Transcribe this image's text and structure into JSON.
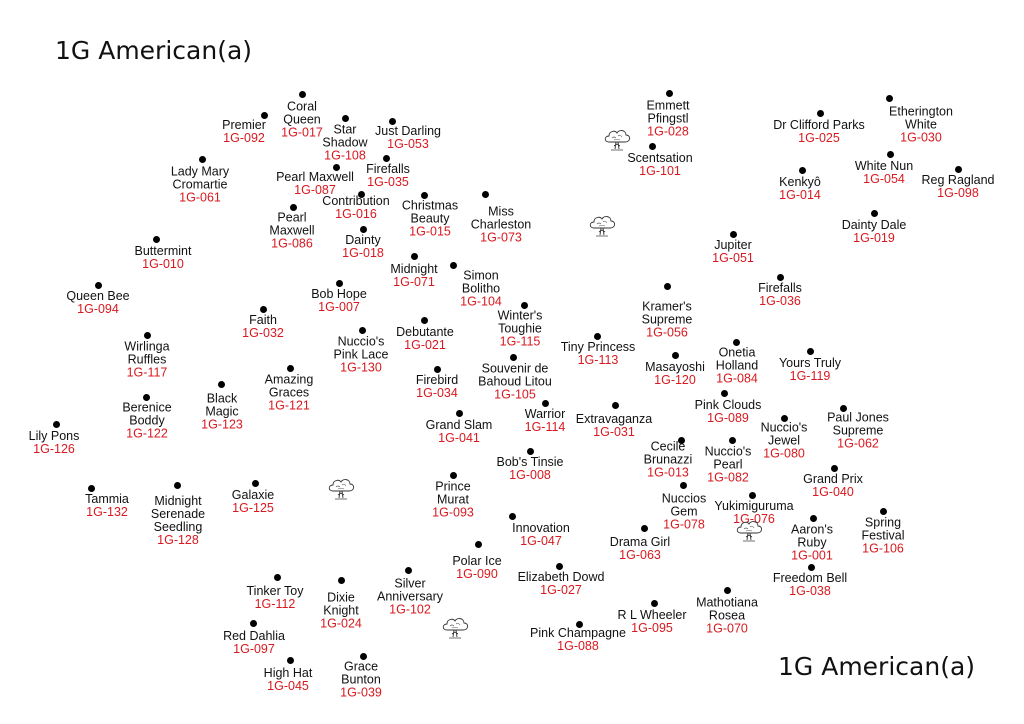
{
  "titles": {
    "top_left": "1G American(a)",
    "bottom_right": "1G American(a)"
  },
  "colors": {
    "name": "#111111",
    "code": "#d8191f",
    "dot": "#000000"
  },
  "plants": [
    {
      "name": "Coral\nQueen",
      "code": "1G-017"
    },
    {
      "name": "Premier",
      "code": "1G-092"
    },
    {
      "name": "Star\nShadow",
      "code": "1G-108"
    },
    {
      "name": "Just Darling",
      "code": "1G-053"
    },
    {
      "name": "Lady Mary\nCromartie",
      "code": "1G-061"
    },
    {
      "name": "Pearl Maxwell",
      "code": "1G-087"
    },
    {
      "name": "Firefalls",
      "code": "1G-035"
    },
    {
      "name": "Contribution",
      "code": "1G-016"
    },
    {
      "name": "Pearl\nMaxwell",
      "code": "1G-086"
    },
    {
      "name": "Christmas\nBeauty",
      "code": "1G-015"
    },
    {
      "name": "Miss\nCharleston",
      "code": "1G-073"
    },
    {
      "name": "Dainty",
      "code": "1G-018"
    },
    {
      "name": "Buttermint",
      "code": "1G-010"
    },
    {
      "name": "Midnight",
      "code": "1G-071"
    },
    {
      "name": "Queen Bee",
      "code": "1G-094"
    },
    {
      "name": "Simon\nBolitho",
      "code": "1G-104"
    },
    {
      "name": "Bob Hope",
      "code": "1G-007"
    },
    {
      "name": "Faith",
      "code": "1G-032"
    },
    {
      "name": "Winter's\nToughie",
      "code": "1G-115"
    },
    {
      "name": "Debutante",
      "code": "1G-021"
    },
    {
      "name": "Nuccio's\nPink Lace",
      "code": "1G-130"
    },
    {
      "name": "Wirlinga\nRuffles",
      "code": "1G-117"
    },
    {
      "name": "Souvenir de\nBahoud Litou",
      "code": "1G-105"
    },
    {
      "name": "Amazing\nGraces",
      "code": "1G-121"
    },
    {
      "name": "Firebird",
      "code": "1G-034"
    },
    {
      "name": "Black\nMagic",
      "code": "1G-123"
    },
    {
      "name": "Berenice\nBoddy",
      "code": "1G-122"
    },
    {
      "name": "Warrior",
      "code": "1G-114"
    },
    {
      "name": "Grand Slam",
      "code": "1G-041"
    },
    {
      "name": "Lily Pons",
      "code": "1G-126"
    },
    {
      "name": "Bob's Tinsie",
      "code": "1G-008"
    },
    {
      "name": "Prince\nMurat",
      "code": "1G-093"
    },
    {
      "name": "Tammia",
      "code": "1G-132"
    },
    {
      "name": "Midnight\nSerenade\nSeedling",
      "code": "1G-128"
    },
    {
      "name": "Galaxie",
      "code": "1G-125"
    },
    {
      "name": "Innovation",
      "code": "1G-047"
    },
    {
      "name": "Polar Ice",
      "code": "1G-090"
    },
    {
      "name": "Elizabeth Dowd",
      "code": "1G-027"
    },
    {
      "name": "Silver\nAnniversary",
      "code": "1G-102"
    },
    {
      "name": "Tinker Toy",
      "code": "1G-112"
    },
    {
      "name": "Dixie\nKnight",
      "code": "1G-024"
    },
    {
      "name": "Red Dahlia",
      "code": "1G-097"
    },
    {
      "name": "High Hat",
      "code": "1G-045"
    },
    {
      "name": "Grace\nBunton",
      "code": "1G-039"
    },
    {
      "name": "Pink Champagne",
      "code": "1G-088"
    },
    {
      "name": "R L Wheeler",
      "code": "1G-095"
    },
    {
      "name": "Mathotiana\nRosea",
      "code": "1G-070"
    },
    {
      "name": "Emmett\nPfingstl",
      "code": "1G-028"
    },
    {
      "name": "Scentsation",
      "code": "1G-101"
    },
    {
      "name": "Dr Clifford Parks",
      "code": "1G-025"
    },
    {
      "name": "Etherington\nWhite",
      "code": "1G-030"
    },
    {
      "name": "White Nun",
      "code": "1G-054"
    },
    {
      "name": "Kenkyô",
      "code": "1G-014"
    },
    {
      "name": "Reg Ragland",
      "code": "1G-098"
    },
    {
      "name": "Dainty Dale",
      "code": "1G-019"
    },
    {
      "name": "Jupiter",
      "code": "1G-051"
    },
    {
      "name": "Firefalls",
      "code": "1G-036"
    },
    {
      "name": "Kramer's\nSupreme",
      "code": "1G-056"
    },
    {
      "name": "Tiny Princess",
      "code": "1G-113"
    },
    {
      "name": "Onetia\nHolland",
      "code": "1G-084"
    },
    {
      "name": "Masayoshi",
      "code": "1G-120"
    },
    {
      "name": "Yours Truly",
      "code": "1G-119"
    },
    {
      "name": "Pink Clouds",
      "code": "1G-089"
    },
    {
      "name": "Extravaganza",
      "code": "1G-031"
    },
    {
      "name": "Paul Jones\nSupreme",
      "code": "1G-062"
    },
    {
      "name": "Nuccio's\nJewel",
      "code": "1G-080"
    },
    {
      "name": "Cecile\nBrunazzi",
      "code": "1G-013"
    },
    {
      "name": "Nuccio's\nPearl",
      "code": "1G-082"
    },
    {
      "name": "Grand Prix",
      "code": "1G-040"
    },
    {
      "name": "Nuccios\nGem",
      "code": "1G-078"
    },
    {
      "name": "Yukimiguruma",
      "code": "1G-076"
    },
    {
      "name": "Drama Girl",
      "code": "1G-063"
    },
    {
      "name": "Aaron's\nRuby",
      "code": "1G-001"
    },
    {
      "name": "Spring\nFestival",
      "code": "1G-106"
    },
    {
      "name": "Freedom Bell",
      "code": "1G-038"
    }
  ],
  "trees": [
    "tree-icon",
    "tree-icon",
    "tree-icon",
    "tree-icon",
    "tree-icon"
  ]
}
